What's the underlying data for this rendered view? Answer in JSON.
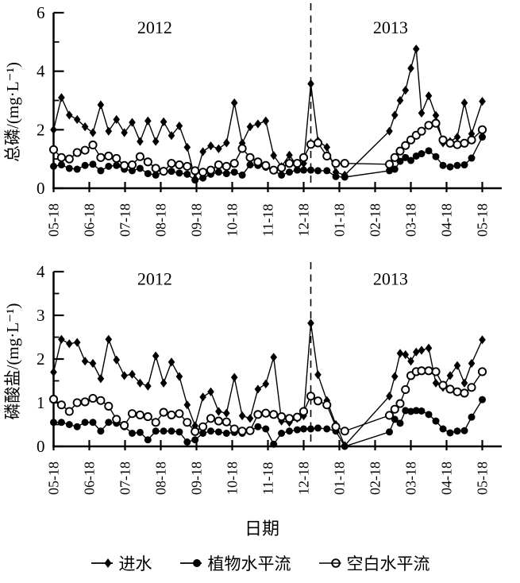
{
  "figure": {
    "xlabel": "日期",
    "x_tick_labels": [
      "05-18",
      "06-18",
      "07-18",
      "08-18",
      "09-18",
      "10-18",
      "11-18",
      "12-18",
      "01-18",
      "02-18",
      "03-18",
      "04-18",
      "05-18"
    ],
    "legend": [
      {
        "id": "influent",
        "label": "进水",
        "marker": "diamond"
      },
      {
        "id": "plant-hsf",
        "label": "植物水平流",
        "marker": "filled-circle"
      },
      {
        "id": "blank-hsf",
        "label": "空白水平流",
        "marker": "open-circle"
      }
    ],
    "line_color": "#000000",
    "background_color": "#ffffff"
  },
  "chart_data": [
    {
      "type": "line",
      "ylabel": "总磷/(mg·L⁻¹)",
      "ylim": [
        0,
        6
      ],
      "yticks": [
        0,
        2,
        4,
        6
      ],
      "minor_ytick_step": 1,
      "divider_x": 7.2,
      "annotations": [
        {
          "text": "2012",
          "x": 2.83,
          "y": 5.3
        },
        {
          "text": "2013",
          "x": 9.43,
          "y": 5.3
        }
      ],
      "x": [
        0,
        0.22,
        0.44,
        0.66,
        0.88,
        1.1,
        1.32,
        1.54,
        1.76,
        1.98,
        2.2,
        2.42,
        2.64,
        2.86,
        3.08,
        3.3,
        3.52,
        3.74,
        3.96,
        4.18,
        4.4,
        4.62,
        4.84,
        5.06,
        5.28,
        5.5,
        5.72,
        5.94,
        6.16,
        6.38,
        6.6,
        6.82,
        7.0,
        7.2,
        7.4,
        7.65,
        7.9,
        8.15,
        9.4,
        9.55,
        9.7,
        9.85,
        10.0,
        10.15,
        10.3,
        10.5,
        10.7,
        10.9,
        11.1,
        11.3,
        11.5,
        11.7,
        12.0
      ],
      "series": [
        {
          "id": "influent",
          "label": "进水",
          "marker": "diamond",
          "values": [
            2.0,
            3.1,
            2.5,
            2.35,
            2.1,
            1.9,
            2.85,
            1.95,
            2.35,
            1.9,
            2.25,
            1.6,
            2.3,
            1.6,
            2.27,
            1.8,
            2.13,
            1.4,
            0.32,
            1.25,
            1.45,
            1.35,
            1.55,
            2.92,
            1.54,
            2.1,
            2.2,
            2.3,
            1.12,
            0.74,
            1.13,
            0.76,
            0.85,
            3.57,
            1.62,
            1.4,
            0.55,
            0.45,
            1.95,
            2.5,
            3.0,
            3.35,
            4.1,
            4.76,
            2.57,
            3.16,
            2.49,
            1.55,
            1.6,
            1.75,
            2.92,
            1.86,
            2.97
          ]
        },
        {
          "id": "plant-hsf",
          "label": "植物水平流",
          "marker": "filled-circle",
          "values": [
            0.75,
            0.8,
            0.68,
            0.65,
            0.78,
            0.82,
            0.6,
            0.75,
            0.78,
            0.65,
            0.6,
            0.68,
            0.5,
            0.45,
            0.55,
            0.58,
            0.52,
            0.48,
            0.28,
            0.35,
            0.48,
            0.55,
            0.5,
            0.55,
            0.45,
            0.8,
            0.78,
            0.72,
            0.6,
            0.45,
            0.55,
            0.62,
            0.62,
            0.62,
            0.6,
            0.6,
            0.4,
            0.38,
            0.6,
            0.65,
            0.92,
            1.05,
            0.95,
            1.1,
            1.18,
            1.28,
            1.08,
            0.78,
            0.73,
            0.78,
            0.8,
            1.03,
            1.75
          ]
        },
        {
          "id": "blank-hsf",
          "label": "空白水平流",
          "marker": "open-circle",
          "values": [
            1.32,
            1.05,
            1.0,
            1.22,
            1.3,
            1.48,
            1.05,
            1.1,
            1.02,
            0.78,
            0.8,
            1.08,
            0.9,
            0.68,
            0.58,
            0.85,
            0.8,
            0.75,
            0.6,
            0.55,
            0.62,
            0.8,
            0.75,
            0.85,
            1.36,
            1.05,
            0.9,
            0.78,
            0.62,
            0.7,
            0.85,
            0.85,
            1.05,
            1.5,
            1.55,
            1.1,
            0.85,
            0.85,
            0.82,
            1.05,
            1.27,
            1.46,
            1.65,
            1.81,
            1.95,
            2.15,
            2.22,
            1.65,
            1.54,
            1.49,
            1.54,
            1.65,
            2.0
          ]
        }
      ]
    },
    {
      "type": "line",
      "ylabel": "磷酸盐/(mg·L⁻¹)",
      "ylim": [
        0,
        4
      ],
      "yticks": [
        0,
        1,
        2,
        3,
        4
      ],
      "minor_ytick_step": 0.5,
      "divider_x": 7.2,
      "annotations": [
        {
          "text": "2012",
          "x": 2.83,
          "y": 3.7
        },
        {
          "text": "2013",
          "x": 9.43,
          "y": 3.7
        }
      ],
      "x": [
        0,
        0.22,
        0.44,
        0.66,
        0.88,
        1.1,
        1.32,
        1.54,
        1.76,
        1.98,
        2.2,
        2.42,
        2.64,
        2.86,
        3.08,
        3.3,
        3.52,
        3.74,
        3.96,
        4.18,
        4.4,
        4.62,
        4.84,
        5.06,
        5.28,
        5.5,
        5.72,
        5.94,
        6.16,
        6.38,
        6.6,
        6.82,
        7.0,
        7.2,
        7.4,
        7.65,
        7.9,
        8.15,
        9.4,
        9.55,
        9.7,
        9.85,
        10.0,
        10.15,
        10.3,
        10.5,
        10.7,
        10.9,
        11.1,
        11.3,
        11.5,
        11.7,
        12.0
      ],
      "series": [
        {
          "id": "influent",
          "label": "进水",
          "marker": "diamond",
          "values": [
            1.7,
            2.45,
            2.35,
            2.38,
            1.95,
            1.9,
            1.55,
            2.45,
            1.98,
            1.62,
            1.65,
            1.45,
            1.38,
            2.07,
            1.45,
            1.93,
            1.6,
            0.95,
            0.47,
            1.13,
            1.25,
            0.8,
            0.76,
            1.58,
            0.7,
            0.64,
            1.31,
            1.43,
            2.04,
            0.58,
            0.55,
            0.64,
            0.7,
            2.82,
            1.64,
            1.05,
            0.5,
            0.02,
            1.15,
            1.6,
            2.13,
            2.1,
            1.95,
            2.16,
            2.2,
            2.25,
            1.45,
            1.35,
            1.62,
            1.85,
            1.45,
            1.9,
            2.44
          ]
        },
        {
          "id": "plant-hsf",
          "label": "植物水平流",
          "marker": "filled-circle",
          "values": [
            0.55,
            0.55,
            0.5,
            0.45,
            0.55,
            0.55,
            0.35,
            0.55,
            0.53,
            0.45,
            0.3,
            0.32,
            0.15,
            0.35,
            0.35,
            0.35,
            0.33,
            0.1,
            0.15,
            0.3,
            0.35,
            0.33,
            0.3,
            0.32,
            0.3,
            0.35,
            0.45,
            0.4,
            0.05,
            0.3,
            0.35,
            0.38,
            0.4,
            0.4,
            0.42,
            0.4,
            0.35,
            0.0,
            0.33,
            0.62,
            0.53,
            0.82,
            0.8,
            0.82,
            0.81,
            0.73,
            0.58,
            0.4,
            0.31,
            0.35,
            0.36,
            0.67,
            1.07
          ]
        },
        {
          "id": "blank-hsf",
          "label": "空白水平流",
          "marker": "open-circle",
          "values": [
            1.08,
            0.95,
            0.8,
            1.0,
            1.02,
            1.1,
            1.05,
            0.92,
            0.62,
            0.48,
            0.75,
            0.72,
            0.68,
            0.55,
            0.78,
            0.72,
            0.75,
            0.55,
            0.34,
            0.45,
            0.64,
            0.58,
            0.56,
            0.4,
            0.35,
            0.36,
            0.73,
            0.76,
            0.73,
            0.68,
            0.64,
            0.67,
            0.8,
            1.15,
            1.04,
            0.95,
            0.45,
            0.35,
            0.71,
            0.85,
            0.98,
            1.3,
            1.62,
            1.71,
            1.73,
            1.73,
            1.71,
            1.4,
            1.31,
            1.25,
            1.22,
            1.35,
            1.71
          ]
        }
      ]
    }
  ]
}
